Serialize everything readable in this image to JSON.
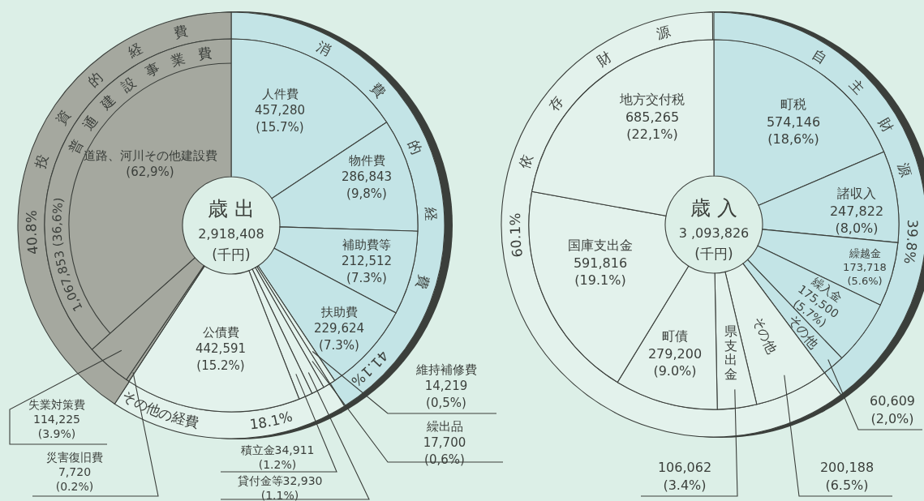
{
  "chart_data": [
    {
      "type": "donut",
      "title": "歳 出",
      "subtitle": "2,918,408",
      "annotations": [
        "(千円)",
        "道路、河川その他建設費 (62,9%)"
      ],
      "categories": [
        "人件費",
        "物件費",
        "補助費等",
        "扶助費",
        "維持補修費",
        "繰出品",
        "貸付金等",
        "積立金",
        "公債費",
        "災害復旧費",
        "失業対策費",
        "普通建設事業費"
      ],
      "values": [
        457280,
        286843,
        212512,
        229624,
        14219,
        17700,
        32930,
        34911,
        442591,
        7720,
        114225,
        1067853
      ],
      "value_labels": [
        "457,280 (15.7%)",
        "286,843 (9,8%)",
        "212,512 (7.3%)",
        "229,624 (7.3%)",
        "14,219 (0,5%)",
        "17,700 (0,6%)",
        "32,930 (1.1%)",
        "34,911 (1.2%)",
        "442,591 (15.2%)",
        "7,720 (0.2%)",
        "114,225 (3.9%)",
        "1,067,853 (36,6%)"
      ],
      "colors": [
        "#c3e4e6",
        "#c3e4e6",
        "#c3e4e6",
        "#c3e4e6",
        "#e3f2ec",
        "#e3f2ec",
        "#e3f2ec",
        "#e3f2ec",
        "#e3f2ec",
        "#a5a89f",
        "#a5a89f",
        "#a5a89f"
      ]
    },
    {
      "type": "donut",
      "categories": [
        "消費的経費",
        "その他の経費",
        "投資的経費"
      ],
      "values": [
        41.1,
        18.1,
        40.8
      ],
      "value_labels": [
        "41.1%",
        "18.1%",
        "40.8%"
      ],
      "colors": [
        "#c3e4e6",
        "#e3f2ec",
        "#a5a89f"
      ]
    },
    {
      "type": "donut",
      "title": "歳 入",
      "subtitle": "3 ,093,826",
      "annotations": [
        "(千円)"
      ],
      "categories": [
        "町税",
        "諸収入",
        "繰越金",
        "繰入金",
        "その他",
        "その他",
        "県支出金",
        "町債",
        "国庫支出金",
        "地方交付税"
      ],
      "values": [
        574146,
        247822,
        173718,
        175500,
        60609,
        200188,
        106062,
        279200,
        591816,
        685265
      ],
      "value_labels": [
        "574,146 (18,6%)",
        "247,822 (8,0%)",
        "173,718 (5.6%)",
        "175,500 (5.7%)",
        "60,609 (2,0%)",
        "200,188 (6.5%)",
        "106,062 (3.4%)",
        "279,200 (9.0%)",
        "591,816 (19.1%)",
        "685,265 (22,1%)"
      ],
      "colors": [
        "#c3e4e6",
        "#c3e4e6",
        "#c3e4e6",
        "#c3e4e6",
        "#c3e4e6",
        "#e3f2ec",
        "#e3f2ec",
        "#e3f2ec",
        "#e3f2ec",
        "#e3f2ec"
      ]
    },
    {
      "type": "donut",
      "categories": [
        "自主財源",
        "依存財源"
      ],
      "values": [
        39.8,
        60.1
      ],
      "value_labels": [
        "39.8%",
        "60.1%"
      ],
      "colors": [
        "#c3e4e6",
        "#e3f2ec"
      ]
    }
  ]
}
